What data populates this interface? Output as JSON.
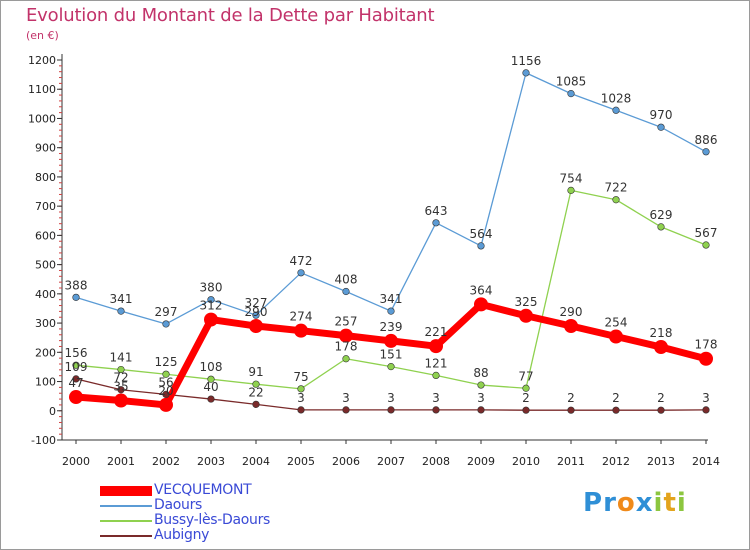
{
  "title": "Evolution du Montant de la Dette par Habitant",
  "subtitle": "(en €)",
  "brand": {
    "letters": [
      "P",
      "r",
      "o",
      "x",
      "i",
      "t",
      "i"
    ],
    "colors": [
      "#2f8fd6",
      "#2f8fd6",
      "#f08a1a",
      "#2f8fd6",
      "#8cc63f",
      "#e3a41c",
      "#8cc63f"
    ]
  },
  "chart_data": {
    "type": "line",
    "title": "Evolution du Montant de la Dette par Habitant",
    "subtitle": "(en €)",
    "x": [
      "2000",
      "2001",
      "2002",
      "2003",
      "2004",
      "2005",
      "2006",
      "2007",
      "2008",
      "2009",
      "2010",
      "2011",
      "2012",
      "2013",
      "2014"
    ],
    "ylim": [
      -100,
      1200
    ],
    "yticks": [
      -100,
      0,
      100,
      200,
      300,
      400,
      500,
      600,
      700,
      800,
      900,
      1000,
      1100,
      1200
    ],
    "grid": false,
    "legend_position": "bottom-left",
    "series": [
      {
        "name": "VECQUEMONT",
        "color": "#ff0000",
        "emphasis": true,
        "values": [
          47,
          35,
          20,
          312,
          290,
          274,
          257,
          239,
          221,
          364,
          325,
          290,
          254,
          218,
          178
        ],
        "labels": [
          "47",
          "35",
          "20",
          "312",
          "290",
          "274",
          "257",
          "239",
          "221",
          "364",
          "325",
          "290",
          "254",
          "218",
          "178"
        ]
      },
      {
        "name": "Daours",
        "color": "#5b9bd5",
        "emphasis": false,
        "values": [
          388,
          341,
          297,
          380,
          327,
          472,
          408,
          341,
          643,
          564,
          1156,
          1085,
          1028,
          970,
          886
        ],
        "labels": [
          "388",
          "341",
          "297",
          "380",
          "327",
          "472",
          "408",
          "341",
          "643",
          "564",
          "1156",
          "1085",
          "1028",
          "970",
          "886"
        ]
      },
      {
        "name": "Bussy-lès-Daours",
        "color": "#8fd14f",
        "emphasis": false,
        "values": [
          156,
          141,
          125,
          108,
          91,
          75,
          178,
          151,
          121,
          88,
          77,
          754,
          722,
          629,
          567
        ],
        "labels": [
          "156",
          "141",
          "125",
          "108",
          "91",
          "75",
          "178",
          "151",
          "121",
          "88",
          "77",
          "754",
          "722",
          "629",
          "567"
        ]
      },
      {
        "name": "Aubigny",
        "color": "#7a2a2a",
        "emphasis": false,
        "values": [
          109,
          72,
          56,
          40,
          22,
          3,
          3,
          3,
          3,
          3,
          2,
          2,
          2,
          2,
          3
        ],
        "labels": [
          "109",
          "72",
          "56",
          "40",
          "22",
          "3",
          "3",
          "3",
          "3",
          "3",
          "2",
          "2",
          "2",
          "2",
          "3"
        ]
      }
    ]
  }
}
